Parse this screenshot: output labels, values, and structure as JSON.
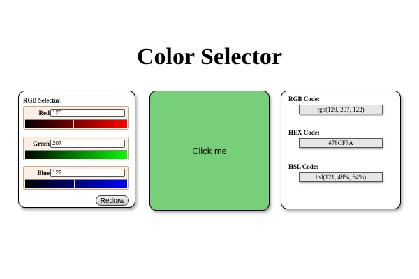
{
  "page": {
    "title": "Color Selector"
  },
  "rgb_selector": {
    "heading": "RGB Selector:",
    "channels": [
      {
        "label": "Red:",
        "value": "120",
        "level": 0.47
      },
      {
        "label": "Green:",
        "value": "207",
        "level": 0.81
      },
      {
        "label": "Blue:",
        "value": "122",
        "level": 0.48
      }
    ],
    "redraw_label": "Redraw"
  },
  "swatch": {
    "text": "Click me",
    "color": "#78CF7A"
  },
  "codes": {
    "rgb_label": "RGB Code:",
    "rgb_value": "rgb(120, 207, 122)",
    "hex_label": "HEX Code:",
    "hex_value": "#78CF7A",
    "hsl_label": "HSL Code:",
    "hsl_value": "hsl(121, 48%, 64%)"
  }
}
